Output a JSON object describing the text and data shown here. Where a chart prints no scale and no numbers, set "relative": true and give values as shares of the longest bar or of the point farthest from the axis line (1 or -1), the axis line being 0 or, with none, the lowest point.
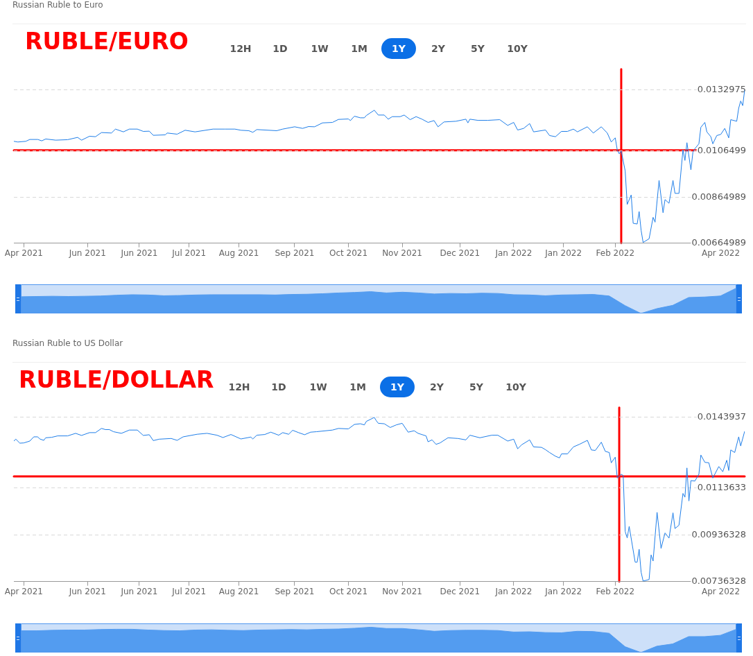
{
  "chart_data": [
    {
      "type": "line",
      "title": "Russian Ruble to Euro",
      "annotations": [
        "RUBLE/EURO",
        "12H",
        "1D",
        "1W",
        "1M",
        "1Y",
        "2Y",
        "5Y",
        "10Y"
      ],
      "x": [
        "2021-04-25",
        "2021-04-27",
        "2021-05-01",
        "2021-05-03",
        "2021-05-07",
        "2021-05-09",
        "2021-05-11",
        "2021-05-16",
        "2021-05-22",
        "2021-05-27",
        "2021-05-29",
        "2021-06-02",
        "2021-06-05",
        "2021-06-08",
        "2021-06-13",
        "2021-06-15",
        "2021-06-19",
        "2021-06-22",
        "2021-06-26",
        "2021-06-29",
        "2021-07-02",
        "2021-07-04",
        "2021-07-10",
        "2021-07-11",
        "2021-07-16",
        "2021-07-20",
        "2021-07-25",
        "2021-08-03",
        "2021-08-09",
        "2021-08-14",
        "2021-08-17",
        "2021-08-21",
        "2021-08-23",
        "2021-08-25",
        "2021-09-04",
        "2021-09-07",
        "2021-09-13",
        "2021-09-17",
        "2021-09-20",
        "2021-09-23",
        "2021-09-27",
        "2021-10-02",
        "2021-10-05",
        "2021-10-10",
        "2021-10-11",
        "2021-10-13",
        "2021-10-16",
        "2021-10-18",
        "2021-10-19",
        "2021-10-23",
        "2021-10-25",
        "2021-10-28",
        "2021-10-30",
        "2021-11-01",
        "2021-11-05",
        "2021-11-07",
        "2021-11-10",
        "2021-11-13",
        "2021-11-16",
        "2021-11-19",
        "2021-11-22",
        "2021-11-24",
        "2021-11-27",
        "2021-12-03",
        "2021-12-08",
        "2021-12-09",
        "2021-12-10",
        "2021-12-14",
        "2021-12-19",
        "2021-12-25",
        "2021-12-29",
        "2022-01-01",
        "2022-01-03",
        "2022-01-06",
        "2022-01-09",
        "2022-01-11",
        "2022-01-17",
        "2022-01-19",
        "2022-01-22",
        "2022-01-25",
        "2022-01-28",
        "2022-01-31",
        "2022-02-02",
        "2022-02-07",
        "2022-02-10",
        "2022-02-14",
        "2022-02-17",
        "2022-02-19",
        "2022-02-21",
        "2022-02-22",
        "2022-02-23",
        "2022-02-24",
        "2022-02-26",
        "2022-02-27",
        "2022-03-01",
        "2022-03-02",
        "2022-03-04",
        "2022-03-05",
        "2022-03-06",
        "2022-03-07",
        "2022-03-10",
        "2022-03-12",
        "2022-03-13",
        "2022-03-15",
        "2022-03-17",
        "2022-03-18",
        "2022-03-20",
        "2022-03-22",
        "2022-03-23",
        "2022-03-25",
        "2022-03-27",
        "2022-03-28",
        "2022-03-29",
        "2022-03-31",
        "2022-04-01",
        "2022-04-02",
        "2022-04-04",
        "2022-04-05",
        "2022-04-07",
        "2022-04-08",
        "2022-04-10",
        "2022-04-11",
        "2022-04-13",
        "2022-04-15",
        "2022-04-17",
        "2022-04-19",
        "2022-04-20",
        "2022-04-23",
        "2022-04-24",
        "2022-04-25",
        "2022-04-26",
        "2022-04-27"
      ],
      "series": [
        {
          "color": "#1f7ee8",
          "values": [
            0.01107,
            0.01104,
            0.01107,
            0.01115,
            0.01115,
            0.01109,
            0.01117,
            0.01112,
            0.01114,
            0.01124,
            0.01112,
            0.01129,
            0.01127,
            0.01145,
            0.01143,
            0.0116,
            0.01148,
            0.0116,
            0.0116,
            0.0115,
            0.01151,
            0.01133,
            0.01135,
            0.01143,
            0.01138,
            0.01155,
            0.01148,
            0.0116,
            0.0116,
            0.0116,
            0.01155,
            0.01153,
            0.01146,
            0.01158,
            0.01153,
            0.0116,
            0.0117,
            0.01163,
            0.01171,
            0.0117,
            0.01187,
            0.01189,
            0.01202,
            0.01204,
            0.01197,
            0.01216,
            0.01209,
            0.01209,
            0.01219,
            0.01242,
            0.01221,
            0.01221,
            0.01203,
            0.01214,
            0.01214,
            0.01221,
            0.01201,
            0.01214,
            0.01203,
            0.01189,
            0.01197,
            0.0117,
            0.01191,
            0.01194,
            0.01203,
            0.01187,
            0.01203,
            0.01198,
            0.01198,
            0.01201,
            0.01176,
            0.01189,
            0.01156,
            0.01163,
            0.01184,
            0.01148,
            0.01156,
            0.01132,
            0.01127,
            0.0115,
            0.0115,
            0.0116,
            0.01148,
            0.0117,
            0.01143,
            0.0117,
            0.01143,
            0.01104,
            0.01122,
            0.0107,
            0.01053,
            0.01065,
            0.00978,
            0.00833,
            0.00874,
            0.00751,
            0.00748,
            0.00802,
            0.0072,
            0.00668,
            0.00684,
            0.00777,
            0.00756,
            0.00937,
            0.00797,
            0.00854,
            0.00838,
            0.00937,
            0.00881,
            0.00881,
            0.0107,
            0.01024,
            0.01101,
            0.00983,
            0.0106,
            0.01075,
            0.01096,
            0.01168,
            0.01189,
            0.01148,
            0.01127,
            0.01096,
            0.01132,
            0.01137,
            0.01163,
            0.01122,
            0.01201,
            0.01194,
            0.01251,
            0.01282,
            0.01262,
            0.0133
          ]
        }
      ],
      "xlim": [
        "2021-04-25",
        "2022-04-27"
      ],
      "xticks": [
        {
          "value": "2021-04-30",
          "label": "Apr 2021"
        },
        {
          "value": "2021-06-01",
          "label": "Jun 2021"
        },
        {
          "value": "2021-06-27",
          "label": "Jun 2021"
        },
        {
          "value": "2021-07-22",
          "label": "Jul 2021"
        },
        {
          "value": "2021-08-16",
          "label": "Aug 2021"
        },
        {
          "value": "2021-09-13",
          "label": "Sep 2021"
        },
        {
          "value": "2021-10-10",
          "label": "Oct 2021"
        },
        {
          "value": "2021-11-06",
          "label": "Nov 2021"
        },
        {
          "value": "2021-12-05",
          "label": "Dec 2021"
        },
        {
          "value": "2022-01-01",
          "label": "Jan 2022"
        },
        {
          "value": "2022-01-26",
          "label": "Jan 2022"
        },
        {
          "value": "2022-02-21",
          "label": "Feb 2022"
        },
        {
          "value": "2022-04-15",
          "label": "Apr 2022"
        }
      ],
      "ylim": [
        0.00664989,
        0.0142
      ],
      "yticks": [
        0.00664989,
        0.00864989,
        0.0106499,
        0.0132975
      ],
      "grid": "y",
      "ref_lines": [
        {
          "axis": "y",
          "value": 0.01068,
          "color": "#ff0000"
        },
        {
          "axis": "x",
          "value": "2022-02-24",
          "color": "#ff0000"
        }
      ]
    },
    {
      "type": "area",
      "relative": true,
      "tick_labels": false,
      "categories": [
        null,
        null,
        null,
        null,
        null,
        null,
        null,
        null,
        null,
        null,
        null,
        null,
        null,
        null,
        null,
        null,
        null,
        null,
        null,
        null,
        null,
        null,
        null,
        null,
        null,
        null,
        null,
        null,
        null,
        null,
        null,
        null,
        null,
        null,
        null,
        null,
        null,
        null,
        null,
        null,
        null,
        null,
        null,
        null,
        null,
        null
      ],
      "series": [
        {
          "color": "#539cf0",
          "values": [
            0.66,
            0.67,
            0.68,
            0.67,
            0.68,
            0.69,
            0.72,
            0.74,
            0.73,
            0.7,
            0.71,
            0.73,
            0.74,
            0.74,
            0.74,
            0.74,
            0.73,
            0.75,
            0.76,
            0.78,
            0.81,
            0.83,
            0.86,
            0.81,
            0.84,
            0.81,
            0.77,
            0.79,
            0.78,
            0.8,
            0.79,
            0.74,
            0.73,
            0.7,
            0.73,
            0.74,
            0.75,
            0.69,
            0.31,
            0,
            0.19,
            0.32,
            0.63,
            0.65,
            0.69,
            1
          ]
        }
      ]
    },
    {
      "type": "line",
      "title": "Russian Ruble to US Dollar",
      "annotations": [
        "RUBLE/DOLLAR",
        "12H",
        "1D",
        "1W",
        "1M",
        "1Y",
        "2Y",
        "5Y",
        "10Y"
      ],
      "x": [
        "2021-04-25",
        "2021-04-26",
        "2021-04-28",
        "2021-04-30",
        "2021-05-03",
        "2021-05-05",
        "2021-05-07",
        "2021-05-08",
        "2021-05-10",
        "2021-05-11",
        "2021-05-14",
        "2021-05-17",
        "2021-05-22",
        "2021-05-26",
        "2021-05-29",
        "2021-06-02",
        "2021-06-05",
        "2021-06-08",
        "2021-06-10",
        "2021-06-12",
        "2021-06-14",
        "2021-06-18",
        "2021-06-22",
        "2021-06-26",
        "2021-06-29",
        "2021-07-02",
        "2021-07-04",
        "2021-07-07",
        "2021-07-13",
        "2021-07-16",
        "2021-07-19",
        "2021-07-26",
        "2021-07-31",
        "2021-08-05",
        "2021-08-08",
        "2021-08-12",
        "2021-08-17",
        "2021-08-22",
        "2021-08-23",
        "2021-08-25",
        "2021-08-29",
        "2021-09-01",
        "2021-09-05",
        "2021-09-07",
        "2021-09-10",
        "2021-09-12",
        "2021-09-15",
        "2021-09-18",
        "2021-09-21",
        "2021-09-24",
        "2021-10-02",
        "2021-10-05",
        "2021-10-10",
        "2021-10-13",
        "2021-10-16",
        "2021-10-18",
        "2021-10-19",
        "2021-10-23",
        "2021-10-24",
        "2021-10-25",
        "2021-10-28",
        "2021-10-31",
        "2021-11-03",
        "2021-11-06",
        "2021-11-09",
        "2021-11-12",
        "2021-11-14",
        "2021-11-18",
        "2021-11-19",
        "2021-11-21",
        "2021-11-23",
        "2021-11-25",
        "2021-11-29",
        "2021-12-04",
        "2021-12-08",
        "2021-12-10",
        "2021-12-15",
        "2021-12-21",
        "2021-12-24",
        "2021-12-29",
        "2022-01-01",
        "2022-01-03",
        "2022-01-05",
        "2022-01-09",
        "2022-01-11",
        "2022-01-15",
        "2022-01-17",
        "2022-01-19",
        "2022-01-22",
        "2022-01-24",
        "2022-01-25",
        "2022-01-28",
        "2022-01-31",
        "2022-02-03",
        "2022-02-07",
        "2022-02-09",
        "2022-02-11",
        "2022-02-14",
        "2022-02-16",
        "2022-02-18",
        "2022-02-19",
        "2022-02-21",
        "2022-02-22",
        "2022-02-24",
        "2022-02-25",
        "2022-02-26",
        "2022-02-27",
        "2022-02-28",
        "2022-03-03",
        "2022-03-04",
        "2022-03-05",
        "2022-03-06",
        "2022-03-07",
        "2022-03-10",
        "2022-03-11",
        "2022-03-12",
        "2022-03-14",
        "2022-03-16",
        "2022-03-18",
        "2022-03-20",
        "2022-03-22",
        "2022-03-23",
        "2022-03-25",
        "2022-03-27",
        "2022-03-28",
        "2022-03-29",
        "2022-03-30",
        "2022-03-31",
        "2022-04-02",
        "2022-04-04",
        "2022-04-05",
        "2022-04-07",
        "2022-04-09",
        "2022-04-11",
        "2022-04-14",
        "2022-04-16",
        "2022-04-18",
        "2022-04-19",
        "2022-04-20",
        "2022-04-22",
        "2022-04-24",
        "2022-04-25",
        "2022-04-27"
      ],
      "series": [
        {
          "color": "#1f7ee8",
          "values": [
            0.01337,
            0.01345,
            0.01328,
            0.01329,
            0.01337,
            0.01355,
            0.01355,
            0.01346,
            0.0134,
            0.01351,
            0.01353,
            0.01359,
            0.01359,
            0.0137,
            0.01361,
            0.01373,
            0.01373,
            0.01391,
            0.01386,
            0.01386,
            0.01377,
            0.0137,
            0.01384,
            0.01384,
            0.01361,
            0.01364,
            0.01339,
            0.01345,
            0.01348,
            0.0134,
            0.01355,
            0.01366,
            0.0137,
            0.01362,
            0.01352,
            0.01365,
            0.01346,
            0.01354,
            0.01346,
            0.01362,
            0.01365,
            0.01375,
            0.01362,
            0.01373,
            0.01366,
            0.01383,
            0.01373,
            0.01364,
            0.01375,
            0.01377,
            0.01384,
            0.01391,
            0.01389,
            0.01408,
            0.01411,
            0.01406,
            0.01421,
            0.01438,
            0.01424,
            0.01413,
            0.01411,
            0.01395,
            0.01406,
            0.01413,
            0.01375,
            0.01381,
            0.0137,
            0.01359,
            0.01334,
            0.01342,
            0.01323,
            0.01329,
            0.01351,
            0.01348,
            0.01342,
            0.01362,
            0.01351,
            0.01362,
            0.01362,
            0.01337,
            0.01345,
            0.01304,
            0.01321,
            0.01342,
            0.01312,
            0.0131,
            0.013,
            0.01288,
            0.01272,
            0.01265,
            0.01282,
            0.01282,
            0.01312,
            0.01323,
            0.0134,
            0.01299,
            0.01297,
            0.01332,
            0.01293,
            0.01288,
            0.01244,
            0.01268,
            0.01179,
            0.01195,
            0.0119,
            0.0095,
            0.00923,
            0.00972,
            0.00819,
            0.00819,
            0.00874,
            0.00776,
            0.00738,
            0.00745,
            0.0085,
            0.00824,
            0.01032,
            0.00878,
            0.00944,
            0.00922,
            0.0103,
            0.00963,
            0.00977,
            0.01113,
            0.01097,
            0.01222,
            0.01081,
            0.01168,
            0.01166,
            0.01195,
            0.01277,
            0.01246,
            0.01244,
            0.01179,
            0.01228,
            0.01206,
            0.01255,
            0.01211,
            0.01299,
            0.01288,
            0.01355,
            0.01316,
            0.01379
          ]
        }
      ],
      "xlim": [
        "2021-04-25",
        "2022-04-27"
      ],
      "xticks": [
        {
          "value": "2021-04-30",
          "label": "Apr 2021"
        },
        {
          "value": "2021-06-01",
          "label": "Jun 2021"
        },
        {
          "value": "2021-06-27",
          "label": "Jun 2021"
        },
        {
          "value": "2021-07-22",
          "label": "Jul 2021"
        },
        {
          "value": "2021-08-16",
          "label": "Aug 2021"
        },
        {
          "value": "2021-09-13",
          "label": "Sep 2021"
        },
        {
          "value": "2021-10-10",
          "label": "Oct 2021"
        },
        {
          "value": "2021-11-06",
          "label": "Nov 2021"
        },
        {
          "value": "2021-12-05",
          "label": "Dec 2021"
        },
        {
          "value": "2022-01-01",
          "label": "Jan 2022"
        },
        {
          "value": "2022-01-26",
          "label": "Jan 2022"
        },
        {
          "value": "2022-02-21",
          "label": "Feb 2022"
        },
        {
          "value": "2022-04-15",
          "label": "Apr 2022"
        }
      ],
      "ylim": [
        0.00736328,
        0.0148
      ],
      "yticks": [
        0.00736328,
        0.00936328,
        0.0113633,
        0.0143937
      ],
      "grid": "y",
      "ref_lines": [
        {
          "axis": "y",
          "value": 0.01186,
          "color": "#ff0000"
        },
        {
          "axis": "x",
          "value": "2022-02-23",
          "color": "#ff0000"
        }
      ]
    },
    {
      "type": "area",
      "relative": true,
      "tick_labels": false,
      "categories": [
        null,
        null,
        null,
        null,
        null,
        null,
        null,
        null,
        null,
        null,
        null,
        null,
        null,
        null,
        null,
        null,
        null,
        null,
        null,
        null,
        null,
        null,
        null,
        null,
        null,
        null,
        null,
        null,
        null,
        null,
        null,
        null,
        null,
        null,
        null,
        null,
        null,
        null,
        null,
        null,
        null,
        null,
        null,
        null,
        null,
        null
      ],
      "series": [
        {
          "color": "#539cf0",
          "values": [
            0.86,
            0.86,
            0.88,
            0.89,
            0.89,
            0.91,
            0.92,
            0.92,
            0.89,
            0.87,
            0.86,
            0.89,
            0.9,
            0.88,
            0.87,
            0.89,
            0.9,
            0.91,
            0.9,
            0.92,
            0.93,
            0.96,
            1,
            0.95,
            0.95,
            0.9,
            0.84,
            0.87,
            0.88,
            0.88,
            0.87,
            0.81,
            0.82,
            0.79,
            0.78,
            0.84,
            0.83,
            0.76,
            0.23,
            0,
            0.25,
            0.34,
            0.63,
            0.63,
            0.68,
            0.92
          ]
        }
      ]
    }
  ]
}
